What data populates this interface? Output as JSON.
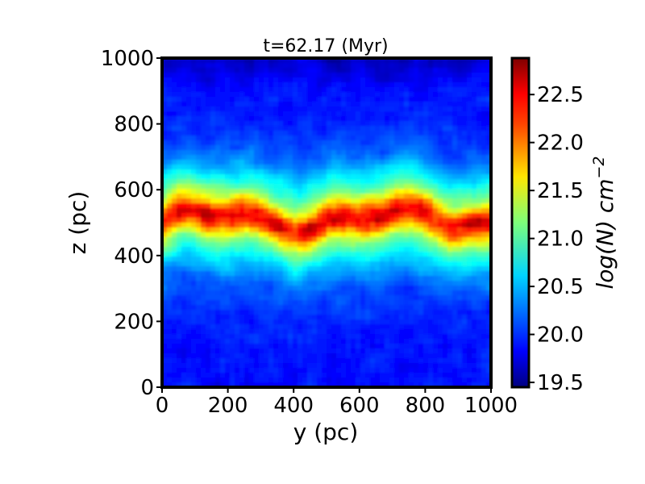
{
  "chart_data": {
    "type": "heatmap",
    "title": "t=62.17 (Myr)",
    "xlabel": "y (pc)",
    "ylabel": "z (pc)",
    "xlim": [
      0,
      1000
    ],
    "ylim": [
      0,
      1000
    ],
    "x_ticks": [
      0,
      200,
      400,
      600,
      800,
      1000
    ],
    "y_ticks": [
      0,
      200,
      400,
      600,
      800,
      1000
    ],
    "colorbar": {
      "label_base": "log(N) cm",
      "label_exponent": "−2",
      "range": [
        19.45,
        22.88
      ],
      "ticks": [
        "19.5",
        "20.0",
        "20.5",
        "21.0",
        "21.5",
        "22.0",
        "22.5"
      ],
      "colormap": "jet"
    },
    "field_description": {
      "midplane_z": 510,
      "peak_value": 22.6,
      "background_value": 19.9
    }
  }
}
